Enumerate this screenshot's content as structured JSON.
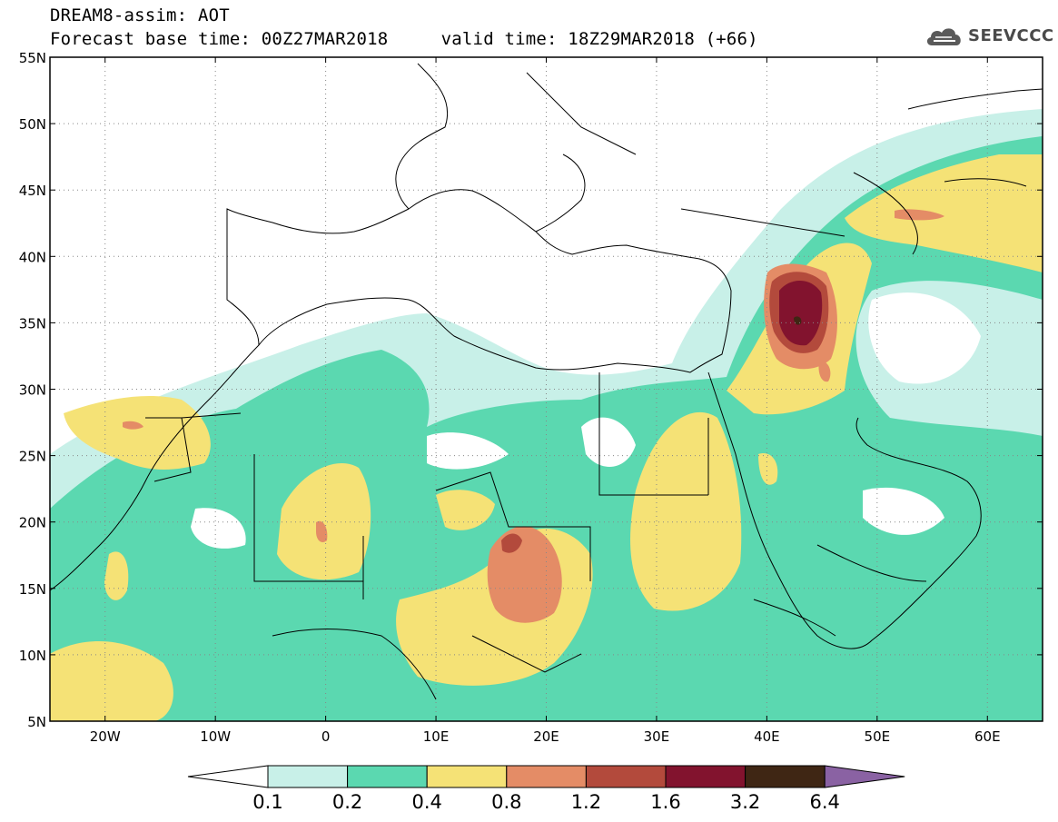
{
  "header": {
    "line1": "DREAM8-assim: AOT",
    "line2": "Forecast base time: 00Z27MAR2018     valid time: 18Z29MAR2018 (+66)"
  },
  "logo": {
    "text": "SEEVCCC",
    "icon": "cloud-icon"
  },
  "map": {
    "lon_range": [
      -25,
      65
    ],
    "lat_range": [
      5,
      55
    ],
    "lat_ticks": [
      "5N",
      "10N",
      "15N",
      "20N",
      "25N",
      "30N",
      "35N",
      "40N",
      "45N",
      "50N",
      "55N"
    ],
    "lon_ticks": [
      "20W",
      "10W",
      "0",
      "10E",
      "20E",
      "30E",
      "40E",
      "50E",
      "60E"
    ],
    "grid": "dotted"
  },
  "colorbar": {
    "labels": [
      "0.1",
      "0.2",
      "0.4",
      "0.8",
      "1.2",
      "1.6",
      "3.2",
      "6.4"
    ],
    "colors": [
      "#ffffff",
      "#c8f0e8",
      "#5bd8b0",
      "#f5e276",
      "#e48c66",
      "#b34a3c",
      "#82132e",
      "#3f2614",
      "#8a62a3"
    ]
  },
  "colors": {
    "c1": "#c8f0e8",
    "c2": "#5bd8b0",
    "c3": "#f5e276",
    "c4": "#e48c66",
    "c5": "#b34a3c",
    "c6": "#82132e",
    "c7": "#3f2614"
  }
}
